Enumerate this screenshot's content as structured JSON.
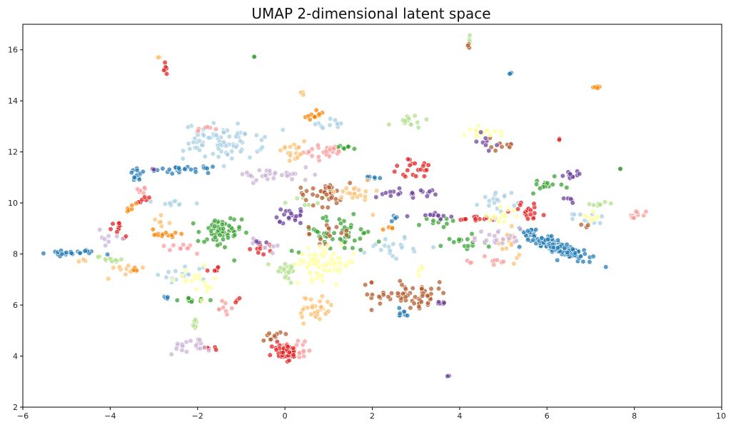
{
  "chart_data": {
    "type": "scatter",
    "title": "UMAP 2-dimensional latent space",
    "xlabel": "",
    "ylabel": "",
    "xlim": [
      -6,
      10
    ],
    "ylim": [
      2,
      17
    ],
    "xticks": [
      -6,
      -4,
      -2,
      0,
      2,
      4,
      6,
      8,
      10
    ],
    "yticks": [
      2,
      4,
      6,
      8,
      10,
      12,
      14,
      16
    ],
    "xtick_labels": [
      "−6",
      "−4",
      "−2",
      "0",
      "2",
      "4",
      "6",
      "8",
      "10"
    ],
    "ytick_labels": [
      "2",
      "4",
      "6",
      "8",
      "10",
      "12",
      "14",
      "16"
    ],
    "grid": false,
    "legend": false,
    "palette": [
      "#a6cee3",
      "#1f78b4",
      "#b2df8a",
      "#33a02c",
      "#fb9a99",
      "#e31a1c",
      "#fdbf6f",
      "#ff7f00",
      "#cab2d6",
      "#6a3d9a",
      "#ffff99",
      "#b15928"
    ],
    "clusters": [
      {
        "color": "#1f78b4",
        "cx": 6.2,
        "cy": 8.3,
        "sx": 0.45,
        "sy": 0.35,
        "n": 160
      },
      {
        "color": "#1f78b4",
        "cx": -4.9,
        "cy": 8.05,
        "sx": 0.3,
        "sy": 0.06,
        "n": 26
      },
      {
        "color": "#1f78b4",
        "cx": -2.3,
        "cy": 11.3,
        "sx": 0.3,
        "sy": 0.06,
        "n": 26
      },
      {
        "color": "#1f78b4",
        "cx": -3.35,
        "cy": 11.1,
        "sx": 0.1,
        "sy": 0.12,
        "n": 12
      },
      {
        "color": "#1f78b4",
        "cx": 2.7,
        "cy": 5.7,
        "sx": 0.12,
        "sy": 0.1,
        "n": 8
      },
      {
        "color": "#1f78b4",
        "cx": -2.7,
        "cy": 6.3,
        "sx": 0.06,
        "sy": 0.05,
        "n": 5
      },
      {
        "color": "#1f78b4",
        "cx": 5.15,
        "cy": 15.05,
        "sx": 0.04,
        "sy": 0.04,
        "n": 3
      },
      {
        "color": "#1f78b4",
        "cx": 2.0,
        "cy": 11.0,
        "sx": 0.1,
        "sy": 0.1,
        "n": 6
      },
      {
        "color": "#1f78b4",
        "cx": 2.5,
        "cy": 9.3,
        "sx": 0.1,
        "sy": 0.1,
        "n": 5
      },
      {
        "color": "#a6cee3",
        "cx": -1.4,
        "cy": 12.4,
        "sx": 0.45,
        "sy": 0.35,
        "n": 80
      },
      {
        "color": "#a6cee3",
        "cx": 1.0,
        "cy": 13.1,
        "sx": 0.2,
        "sy": 0.1,
        "n": 12
      },
      {
        "color": "#a6cee3",
        "cx": 2.5,
        "cy": 8.3,
        "sx": 0.3,
        "sy": 0.25,
        "n": 20
      },
      {
        "color": "#a6cee3",
        "cx": -2.3,
        "cy": 7.2,
        "sx": 0.3,
        "sy": 0.2,
        "n": 15
      },
      {
        "color": "#a6cee3",
        "cx": 4.9,
        "cy": 10.1,
        "sx": 0.2,
        "sy": 0.2,
        "n": 18
      },
      {
        "color": "#a6cee3",
        "cx": -2.6,
        "cy": 10.0,
        "sx": 0.2,
        "sy": 0.08,
        "n": 10
      },
      {
        "color": "#a6cee3",
        "cx": 7.0,
        "cy": 9.4,
        "sx": 0.2,
        "sy": 0.1,
        "n": 10
      },
      {
        "color": "#33a02c",
        "cx": -1.5,
        "cy": 8.8,
        "sx": 0.25,
        "sy": 0.35,
        "n": 55
      },
      {
        "color": "#33a02c",
        "cx": 1.2,
        "cy": 8.8,
        "sx": 0.5,
        "sy": 0.35,
        "n": 50
      },
      {
        "color": "#33a02c",
        "cx": -2.0,
        "cy": 6.2,
        "sx": 0.2,
        "sy": 0.03,
        "n": 12
      },
      {
        "color": "#33a02c",
        "cx": 6.0,
        "cy": 10.7,
        "sx": 0.2,
        "sy": 0.15,
        "n": 15
      },
      {
        "color": "#33a02c",
        "cx": 4.0,
        "cy": 8.3,
        "sx": 0.3,
        "sy": 0.2,
        "n": 15
      },
      {
        "color": "#33a02c",
        "cx": 1.4,
        "cy": 12.2,
        "sx": 0.15,
        "sy": 0.05,
        "n": 8
      },
      {
        "color": "#33a02c",
        "cx": 3.5,
        "cy": 9.2,
        "sx": 0.2,
        "sy": 0.15,
        "n": 10
      },
      {
        "color": "#33a02c",
        "cx": -0.7,
        "cy": 15.75,
        "sx": 0.02,
        "sy": 0.02,
        "n": 2
      },
      {
        "color": "#33a02c",
        "cx": 7.7,
        "cy": 11.3,
        "sx": 0.02,
        "sy": 0.02,
        "n": 2
      },
      {
        "color": "#b2df8a",
        "cx": 0.0,
        "cy": 7.4,
        "sx": 0.15,
        "sy": 0.2,
        "n": 25
      },
      {
        "color": "#b2df8a",
        "cx": -4.0,
        "cy": 7.8,
        "sx": 0.15,
        "sy": 0.08,
        "n": 12
      },
      {
        "color": "#b2df8a",
        "cx": 2.8,
        "cy": 13.2,
        "sx": 0.2,
        "sy": 0.12,
        "n": 15
      },
      {
        "color": "#b2df8a",
        "cx": -2.0,
        "cy": 5.2,
        "sx": 0.05,
        "sy": 0.2,
        "n": 6
      },
      {
        "color": "#b2df8a",
        "cx": 7.2,
        "cy": 10.0,
        "sx": 0.15,
        "sy": 0.1,
        "n": 8
      },
      {
        "color": "#b2df8a",
        "cx": 4.2,
        "cy": 16.4,
        "sx": 0.02,
        "sy": 0.05,
        "n": 3
      },
      {
        "color": "#b2df8a",
        "cx": 0.5,
        "cy": 10.2,
        "sx": 0.2,
        "sy": 0.2,
        "n": 8
      },
      {
        "color": "#fb9a99",
        "cx": 1.0,
        "cy": 12.0,
        "sx": 0.3,
        "sy": 0.15,
        "n": 25
      },
      {
        "color": "#fb9a99",
        "cx": 0.3,
        "cy": 4.3,
        "sx": 0.2,
        "sy": 0.2,
        "n": 15
      },
      {
        "color": "#fb9a99",
        "cx": 8.0,
        "cy": 9.6,
        "sx": 0.2,
        "sy": 0.15,
        "n": 10
      },
      {
        "color": "#fb9a99",
        "cx": -1.8,
        "cy": 12.9,
        "sx": 0.1,
        "sy": 0.05,
        "n": 6
      },
      {
        "color": "#fb9a99",
        "cx": -1.4,
        "cy": 5.9,
        "sx": 0.08,
        "sy": 0.15,
        "n": 8
      },
      {
        "color": "#fb9a99",
        "cx": -3.3,
        "cy": 10.5,
        "sx": 0.1,
        "sy": 0.1,
        "n": 6
      },
      {
        "color": "#fb9a99",
        "cx": 4.8,
        "cy": 7.7,
        "sx": 0.2,
        "sy": 0.15,
        "n": 10
      },
      {
        "color": "#fb9a99",
        "cx": -2.3,
        "cy": 8.2,
        "sx": 0.2,
        "sy": 0.1,
        "n": 10
      },
      {
        "color": "#e31a1c",
        "cx": 0.0,
        "cy": 4.15,
        "sx": 0.15,
        "sy": 0.2,
        "n": 40
      },
      {
        "color": "#e31a1c",
        "cx": -2.75,
        "cy": 15.3,
        "sx": 0.04,
        "sy": 0.15,
        "n": 6
      },
      {
        "color": "#e31a1c",
        "cx": 3.0,
        "cy": 11.3,
        "sx": 0.3,
        "sy": 0.2,
        "n": 20
      },
      {
        "color": "#e31a1c",
        "cx": 5.6,
        "cy": 9.7,
        "sx": 0.2,
        "sy": 0.2,
        "n": 18
      },
      {
        "color": "#e31a1c",
        "cx": 4.4,
        "cy": 9.4,
        "sx": 0.3,
        "sy": 0.05,
        "n": 15
      },
      {
        "color": "#e31a1c",
        "cx": -3.8,
        "cy": 8.8,
        "sx": 0.12,
        "sy": 0.25,
        "n": 10
      },
      {
        "color": "#e31a1c",
        "cx": -0.4,
        "cy": 8.2,
        "sx": 0.15,
        "sy": 0.1,
        "n": 8
      },
      {
        "color": "#e31a1c",
        "cx": -3.2,
        "cy": 10.1,
        "sx": 0.1,
        "sy": 0.1,
        "n": 6
      },
      {
        "color": "#e31a1c",
        "cx": -1.6,
        "cy": 7.4,
        "sx": 0.1,
        "sy": 0.05,
        "n": 6
      },
      {
        "color": "#e31a1c",
        "cx": -1.7,
        "cy": 4.3,
        "sx": 0.1,
        "sy": 0.05,
        "n": 5
      },
      {
        "color": "#e31a1c",
        "cx": -1.1,
        "cy": 6.2,
        "sx": 0.05,
        "sy": 0.05,
        "n": 3
      },
      {
        "color": "#e31a1c",
        "cx": 6.3,
        "cy": 12.5,
        "sx": 0.02,
        "sy": 0.02,
        "n": 2
      },
      {
        "color": "#b15928",
        "cx": 2.9,
        "cy": 6.4,
        "sx": 0.45,
        "sy": 0.25,
        "n": 60
      },
      {
        "color": "#b15928",
        "cx": 0.9,
        "cy": 10.4,
        "sx": 0.3,
        "sy": 0.25,
        "n": 35
      },
      {
        "color": "#b15928",
        "cx": 1.0,
        "cy": 8.8,
        "sx": 0.25,
        "sy": 0.2,
        "n": 15
      },
      {
        "color": "#b15928",
        "cx": -0.3,
        "cy": 4.8,
        "sx": 0.1,
        "sy": 0.15,
        "n": 10
      },
      {
        "color": "#b15928",
        "cx": 5.0,
        "cy": 12.3,
        "sx": 0.15,
        "sy": 0.15,
        "n": 10
      },
      {
        "color": "#b15928",
        "cx": 4.2,
        "cy": 16.2,
        "sx": 0.03,
        "sy": 0.05,
        "n": 3
      },
      {
        "color": "#b15928",
        "cx": 6.9,
        "cy": 9.1,
        "sx": 0.05,
        "sy": 0.05,
        "n": 3
      },
      {
        "color": "#b15928",
        "cx": 2.0,
        "cy": 6.9,
        "sx": 0.05,
        "sy": 0.05,
        "n": 3
      },
      {
        "color": "#ffff99",
        "cx": 0.9,
        "cy": 7.6,
        "sx": 0.35,
        "sy": 0.3,
        "n": 70
      },
      {
        "color": "#ffff99",
        "cx": 4.5,
        "cy": 12.8,
        "sx": 0.2,
        "sy": 0.12,
        "n": 18
      },
      {
        "color": "#ffff99",
        "cx": 4.9,
        "cy": 9.5,
        "sx": 0.2,
        "sy": 0.15,
        "n": 15
      },
      {
        "color": "#ffff99",
        "cx": -1.9,
        "cy": 6.8,
        "sx": 0.3,
        "sy": 0.3,
        "n": 20
      },
      {
        "color": "#ffff99",
        "cx": 7.0,
        "cy": 9.5,
        "sx": 0.1,
        "sy": 0.1,
        "n": 10
      },
      {
        "color": "#ffff99",
        "cx": 3.1,
        "cy": 7.4,
        "sx": 0.08,
        "sy": 0.1,
        "n": 6
      },
      {
        "color": "#fdbf6f",
        "cx": 0.7,
        "cy": 5.8,
        "sx": 0.2,
        "sy": 0.3,
        "n": 35
      },
      {
        "color": "#fdbf6f",
        "cx": 0.2,
        "cy": 12.1,
        "sx": 0.15,
        "sy": 0.25,
        "n": 18
      },
      {
        "color": "#fdbf6f",
        "cx": 1.6,
        "cy": 10.4,
        "sx": 0.2,
        "sy": 0.3,
        "n": 20
      },
      {
        "color": "#fdbf6f",
        "cx": 5.1,
        "cy": 8.3,
        "sx": 0.15,
        "sy": 0.3,
        "n": 15
      },
      {
        "color": "#fdbf6f",
        "cx": -3.6,
        "cy": 7.4,
        "sx": 0.15,
        "sy": 0.2,
        "n": 10
      },
      {
        "color": "#fdbf6f",
        "cx": -2.8,
        "cy": 9.3,
        "sx": 0.1,
        "sy": 0.1,
        "n": 6
      },
      {
        "color": "#fdbf6f",
        "cx": 0.4,
        "cy": 14.3,
        "sx": 0.04,
        "sy": 0.04,
        "n": 3
      },
      {
        "color": "#fdbf6f",
        "cx": -2.85,
        "cy": 15.75,
        "sx": 0.04,
        "sy": 0.04,
        "n": 3
      },
      {
        "color": "#fdbf6f",
        "cx": -4.6,
        "cy": 7.75,
        "sx": 0.06,
        "sy": 0.03,
        "n": 3
      },
      {
        "color": "#ff7f00",
        "cx": -2.8,
        "cy": 8.8,
        "sx": 0.15,
        "sy": 0.12,
        "n": 15
      },
      {
        "color": "#ff7f00",
        "cx": 0.65,
        "cy": 13.4,
        "sx": 0.12,
        "sy": 0.1,
        "n": 12
      },
      {
        "color": "#ff7f00",
        "cx": 7.1,
        "cy": 14.5,
        "sx": 0.08,
        "sy": 0.05,
        "n": 5
      },
      {
        "color": "#ff7f00",
        "cx": -3.5,
        "cy": 9.8,
        "sx": 0.1,
        "sy": 0.1,
        "n": 6
      },
      {
        "color": "#ff7f00",
        "cx": -3.4,
        "cy": 7.3,
        "sx": 0.05,
        "sy": 0.1,
        "n": 5
      },
      {
        "color": "#ff7f00",
        "cx": 2.4,
        "cy": 9.0,
        "sx": 0.1,
        "sy": 0.1,
        "n": 4
      },
      {
        "color": "#cab2d6",
        "cx": -0.2,
        "cy": 11.1,
        "sx": 0.45,
        "sy": 0.12,
        "n": 30
      },
      {
        "color": "#cab2d6",
        "cx": -2.2,
        "cy": 4.4,
        "sx": 0.25,
        "sy": 0.15,
        "n": 20
      },
      {
        "color": "#cab2d6",
        "cx": 4.9,
        "cy": 8.6,
        "sx": 0.3,
        "sy": 0.2,
        "n": 20
      },
      {
        "color": "#cab2d6",
        "cx": -0.4,
        "cy": 8.4,
        "sx": 0.2,
        "sy": 0.15,
        "n": 10
      },
      {
        "color": "#cab2d6",
        "cx": -4.1,
        "cy": 8.6,
        "sx": 0.15,
        "sy": 0.15,
        "n": 8
      },
      {
        "color": "#6a3d9a",
        "cx": 0.1,
        "cy": 9.5,
        "sx": 0.2,
        "sy": 0.15,
        "n": 20
      },
      {
        "color": "#6a3d9a",
        "cx": 2.7,
        "cy": 10.4,
        "sx": 0.35,
        "sy": 0.1,
        "n": 20
      },
      {
        "color": "#6a3d9a",
        "cx": 6.6,
        "cy": 11.1,
        "sx": 0.15,
        "sy": 0.06,
        "n": 12
      },
      {
        "color": "#6a3d9a",
        "cx": 3.4,
        "cy": 9.5,
        "sx": 0.2,
        "sy": 0.08,
        "n": 12
      },
      {
        "color": "#6a3d9a",
        "cx": 4.6,
        "cy": 12.4,
        "sx": 0.1,
        "sy": 0.15,
        "n": 8
      },
      {
        "color": "#6a3d9a",
        "cx": 6.5,
        "cy": 10.2,
        "sx": 0.06,
        "sy": 0.08,
        "n": 5
      },
      {
        "color": "#6a3d9a",
        "cx": 3.55,
        "cy": 6.1,
        "sx": 0.1,
        "sy": 0.05,
        "n": 5
      },
      {
        "color": "#6a3d9a",
        "cx": -0.6,
        "cy": 8.5,
        "sx": 0.1,
        "sy": 0.08,
        "n": 5
      },
      {
        "color": "#6a3d9a",
        "cx": 3.75,
        "cy": 3.2,
        "sx": 0.02,
        "sy": 0.02,
        "n": 2
      },
      {
        "color": "#6a3d9a",
        "cx": -3.0,
        "cy": 11.3,
        "sx": 0.02,
        "sy": 0.02,
        "n": 2
      }
    ]
  }
}
